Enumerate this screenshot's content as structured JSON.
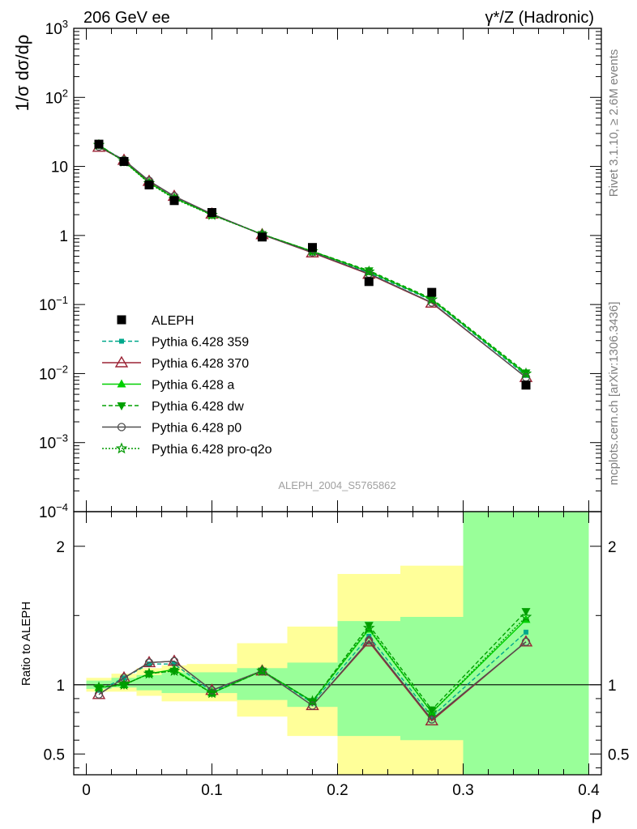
{
  "header": {
    "left": "206 GeV ee",
    "right": "γ*/Z (Hadronic)"
  },
  "side_labels": {
    "rivet": "Rivet 3.1.10, ≥ 2.6M events",
    "mcplots": "mcplots.cern.ch [arXiv:1306.3436]"
  },
  "watermark": "ALEPH_2004_S5765862",
  "chart_data": [
    {
      "type": "scatter",
      "panel": "main",
      "ylabel": "1/σ  dσ/dρ",
      "yscale": "log",
      "ylim": [
        0.0001,
        1000
      ],
      "xlim": [
        -0.01,
        0.41
      ],
      "ytick_labels": [
        {
          "value": 1000,
          "base": "10",
          "exp": "3"
        },
        {
          "value": 100,
          "base": "10",
          "exp": "2"
        },
        {
          "value": 10,
          "base": "10",
          "exp": ""
        },
        {
          "value": 1,
          "base": "1",
          "exp": ""
        },
        {
          "value": 0.1,
          "base": "10",
          "exp": "−1"
        },
        {
          "value": 0.01,
          "base": "10",
          "exp": "−2"
        },
        {
          "value": 0.001,
          "base": "10",
          "exp": "−3"
        },
        {
          "value": 0.0001,
          "base": "10",
          "exp": "−4"
        }
      ],
      "legend_position": "lower-left",
      "x": [
        0.01,
        0.03,
        0.05,
        0.07,
        0.1,
        0.14,
        0.18,
        0.225,
        0.275,
        0.35
      ],
      "data": {
        "name": "ALEPH",
        "color": "#000000",
        "values": [
          21.0,
          11.8,
          5.4,
          3.2,
          2.15,
          0.95,
          0.67,
          0.215,
          0.15,
          0.0068
        ],
        "band_edges": [
          0,
          0.02,
          0.04,
          0.06,
          0.08,
          0.12,
          0.16,
          0.2,
          0.25,
          0.3,
          0.4
        ],
        "band_green": [
          [
            0.97,
            1.03
          ],
          [
            0.98,
            1.05
          ],
          [
            0.96,
            1.07
          ],
          [
            0.94,
            1.09
          ],
          [
            0.94,
            1.09
          ],
          [
            0.89,
            1.12
          ],
          [
            0.84,
            1.16
          ],
          [
            0.63,
            1.46
          ],
          [
            0.6,
            1.49
          ],
          [
            0.01,
            9.9
          ]
        ],
        "band_yellow": [
          [
            0.95,
            1.05
          ],
          [
            0.95,
            1.08
          ],
          [
            0.92,
            1.12
          ],
          [
            0.88,
            1.14
          ],
          [
            0.88,
            1.15
          ],
          [
            0.77,
            1.3
          ],
          [
            0.63,
            1.42
          ],
          [
            0.01,
            1.8
          ],
          [
            0.01,
            1.86
          ],
          [
            0.01,
            9.9
          ]
        ]
      },
      "series": [
        {
          "name": "Pythia 6.428 359",
          "color": "#00a88c",
          "dash": "5,3",
          "marker": "square-small",
          "values": [
            19.8,
            12.4,
            6.0,
            3.6,
            2.05,
            1.04,
            0.58,
            0.29,
            0.115,
            0.0094
          ]
        },
        {
          "name": "Pythia 6.428 370",
          "color": "#9b2335",
          "dash": "",
          "marker": "triangle-open",
          "values": [
            19.0,
            12.3,
            6.1,
            3.7,
            2.05,
            1.03,
            0.56,
            0.275,
            0.105,
            0.0088
          ]
        },
        {
          "name": "Pythia 6.428 a",
          "color": "#00d000",
          "dash": "",
          "marker": "triangle-filled",
          "values": [
            20.5,
            11.8,
            5.8,
            3.5,
            2.0,
            1.04,
            0.59,
            0.3,
            0.118,
            0.0098
          ]
        },
        {
          "name": "Pythia 6.428 dw",
          "color": "#00a000",
          "dash": "5,3",
          "marker": "triangle-down-filled",
          "values": [
            20.6,
            11.8,
            5.8,
            3.5,
            2.0,
            1.04,
            0.59,
            0.31,
            0.122,
            0.0103
          ]
        },
        {
          "name": "Pythia 6.428 p0",
          "color": "#505050",
          "dash": "",
          "marker": "circle-open",
          "values": [
            19.4,
            12.4,
            6.2,
            3.7,
            2.05,
            1.03,
            0.57,
            0.28,
            0.107,
            0.0088
          ]
        },
        {
          "name": "Pythia 6.428 pro-q2o",
          "color": "#009900",
          "dash": "2,2",
          "marker": "star-open",
          "values": [
            20.4,
            11.7,
            5.7,
            3.4,
            1.98,
            1.04,
            0.59,
            0.3,
            0.118,
            0.01
          ]
        }
      ]
    },
    {
      "type": "line",
      "panel": "ratio",
      "ylabel": "Ratio to ALEPH",
      "xlabel": "ρ",
      "ylim": [
        0.35,
        2.25
      ],
      "xlim": [
        -0.01,
        0.41
      ],
      "yticks_left": [
        0.5,
        1,
        2
      ],
      "yticks_right": [
        0.5,
        1,
        2
      ],
      "xticks": [
        0,
        0.1,
        0.2,
        0.3,
        0.4
      ],
      "xtick_labels": [
        "0",
        "0.1",
        "0.2",
        "0.3",
        "0.4"
      ],
      "reference_line": 1,
      "series_ratios": [
        [
          0.96,
          1.05,
          1.15,
          1.15,
          0.95,
          1.1,
          0.87,
          1.35,
          0.77,
          1.38
        ],
        [
          0.93,
          1.05,
          1.16,
          1.17,
          0.96,
          1.1,
          0.85,
          1.31,
          0.74,
          1.31
        ],
        [
          0.98,
          1.0,
          1.08,
          1.11,
          0.94,
          1.1,
          0.88,
          1.4,
          0.8,
          1.47
        ],
        [
          0.98,
          1.0,
          1.08,
          1.1,
          0.94,
          1.1,
          0.88,
          1.43,
          0.82,
          1.53
        ],
        [
          0.93,
          1.05,
          1.16,
          1.17,
          0.96,
          1.1,
          0.85,
          1.32,
          0.75,
          1.31
        ],
        [
          0.98,
          1.0,
          1.08,
          1.1,
          0.94,
          1.1,
          0.88,
          1.41,
          0.8,
          1.49
        ]
      ]
    }
  ]
}
